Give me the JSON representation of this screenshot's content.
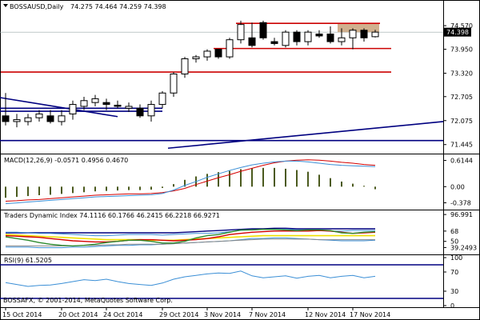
{
  "window": {
    "title": "BOSSAUSD,Daily",
    "ohlc_text": "74.275 74.464 74.259 74.398",
    "current_price": "74.398",
    "copyright": "BOSSAFX, © 2001-2014, MetaQuotes Software Corp."
  },
  "colors": {
    "bull": "#ffffff",
    "bear": "#000000",
    "candle_outline": "#000000",
    "resistance": "#cc0000",
    "trend": "#000080",
    "price_box": "#c8a27a",
    "macd_signal": "#d40000",
    "macd_main": "#3b8fd6",
    "macd_hist": "#4b5a1e",
    "tdi_green": "#2e8b2e",
    "tdi_red": "#d40000",
    "tdi_yellow": "#f0e000",
    "tdi_navy": "#000080",
    "tdi_gray": "#888888",
    "rsi_line": "#3b8fd6"
  },
  "macd": {
    "label": "MACD(12,26,9) -0.0571 0.4956 0.4670"
  },
  "tdi": {
    "label": "Traders Dynamic Index 74.1116 60.1766 46.2415 66.2218 66.9271"
  },
  "rsi": {
    "label": "RSI(9) 61.5205"
  },
  "chart_data": {
    "type": "candlestick",
    "title": "BOSSAUSD,Daily",
    "price_axis": {
      "ticks": [
        74.57,
        73.95,
        73.32,
        72.705,
        72.075,
        71.445
      ],
      "labels": [
        "74.570",
        "73.950",
        "73.320",
        "72.705",
        "72.075",
        "71.445"
      ]
    },
    "price_range": [
      71.25,
      74.95
    ],
    "date_labels": [
      "15 Oct 2014",
      "20 Oct 2014",
      "24 Oct 2014",
      "29 Oct 2014",
      "3 Nov 2014",
      "7 Nov 2014",
      "12 Nov 2014",
      "17 Nov 2014"
    ],
    "date_label_candle_index": [
      0,
      5,
      9,
      14,
      18,
      22,
      27,
      31
    ],
    "candles": [
      {
        "o": 72.2,
        "h": 72.8,
        "l": 71.95,
        "c": 72.05
      },
      {
        "o": 72.05,
        "h": 72.25,
        "l": 71.9,
        "c": 72.1
      },
      {
        "o": 72.05,
        "h": 72.25,
        "l": 71.95,
        "c": 72.15
      },
      {
        "o": 72.15,
        "h": 72.35,
        "l": 72.05,
        "c": 72.25
      },
      {
        "o": 72.2,
        "h": 72.35,
        "l": 72.0,
        "c": 72.05
      },
      {
        "o": 72.05,
        "h": 72.35,
        "l": 71.95,
        "c": 72.2
      },
      {
        "o": 72.25,
        "h": 72.6,
        "l": 72.1,
        "c": 72.5
      },
      {
        "o": 72.45,
        "h": 72.7,
        "l": 72.35,
        "c": 72.6
      },
      {
        "o": 72.55,
        "h": 72.75,
        "l": 72.45,
        "c": 72.65
      },
      {
        "o": 72.55,
        "h": 72.65,
        "l": 72.35,
        "c": 72.5
      },
      {
        "o": 72.48,
        "h": 72.6,
        "l": 72.4,
        "c": 72.45
      },
      {
        "o": 72.4,
        "h": 72.55,
        "l": 72.3,
        "c": 72.45
      },
      {
        "o": 72.4,
        "h": 72.5,
        "l": 72.15,
        "c": 72.2
      },
      {
        "o": 72.2,
        "h": 72.6,
        "l": 72.05,
        "c": 72.5
      },
      {
        "o": 72.5,
        "h": 72.85,
        "l": 72.4,
        "c": 72.8
      },
      {
        "o": 72.8,
        "h": 73.35,
        "l": 72.7,
        "c": 73.3
      },
      {
        "o": 73.3,
        "h": 73.75,
        "l": 73.2,
        "c": 73.7
      },
      {
        "o": 73.7,
        "h": 73.8,
        "l": 73.6,
        "c": 73.75
      },
      {
        "o": 73.75,
        "h": 73.95,
        "l": 73.65,
        "c": 73.9
      },
      {
        "o": 73.95,
        "h": 73.95,
        "l": 73.7,
        "c": 73.75
      },
      {
        "o": 73.75,
        "h": 74.25,
        "l": 73.7,
        "c": 74.2
      },
      {
        "o": 74.2,
        "h": 74.7,
        "l": 74.1,
        "c": 74.6
      },
      {
        "o": 74.25,
        "h": 74.65,
        "l": 74.0,
        "c": 74.05
      },
      {
        "o": 74.65,
        "h": 74.7,
        "l": 74.2,
        "c": 74.25
      },
      {
        "o": 74.15,
        "h": 74.25,
        "l": 74.05,
        "c": 74.1
      },
      {
        "o": 74.05,
        "h": 74.45,
        "l": 74.0,
        "c": 74.4
      },
      {
        "o": 74.4,
        "h": 74.45,
        "l": 74.05,
        "c": 74.15
      },
      {
        "o": 74.15,
        "h": 74.45,
        "l": 74.05,
        "c": 74.4
      },
      {
        "o": 74.35,
        "h": 74.45,
        "l": 74.25,
        "c": 74.3
      },
      {
        "o": 74.35,
        "h": 74.55,
        "l": 74.1,
        "c": 74.15
      },
      {
        "o": 74.15,
        "h": 74.5,
        "l": 74.05,
        "c": 74.25
      },
      {
        "o": 74.25,
        "h": 74.5,
        "l": 73.95,
        "c": 74.45
      },
      {
        "o": 74.45,
        "h": 74.5,
        "l": 74.15,
        "c": 74.25
      },
      {
        "o": 74.28,
        "h": 74.46,
        "l": 74.26,
        "c": 74.4
      }
    ],
    "resistance_levels": [
      {
        "price": 74.63,
        "from_index": 21,
        "to_index": 33
      },
      {
        "price": 73.97,
        "from_index": 19,
        "to_index": 34
      },
      {
        "price": 73.35,
        "from_index": 0,
        "to_index": 34
      }
    ],
    "price_box": {
      "top": 74.63,
      "bottom": 74.4,
      "from_index": 30,
      "to_index": 33
    },
    "trend_lines": [
      {
        "from": {
          "i": 0,
          "p": 72.68
        },
        "to": {
          "i": 10,
          "p": 72.18
        }
      },
      {
        "from": {
          "i": 0,
          "p": 72.4
        },
        "to": {
          "i": 14,
          "p": 72.4
        }
      },
      {
        "from": {
          "i": 0,
          "p": 72.32
        },
        "to": {
          "i": 14,
          "p": 72.32
        }
      },
      {
        "from": {
          "i": 0,
          "p": 71.55
        },
        "to": {
          "i": 40,
          "p": 71.55
        }
      },
      {
        "from": {
          "i": 15,
          "p": 71.35
        },
        "to": {
          "i": 40,
          "p": 72.05
        }
      }
    ],
    "macd": {
      "axis_ticks": [
        0.6144,
        0.0,
        -0.378
      ],
      "axis_labels": [
        "0.6144",
        "0.00",
        "-0.378"
      ],
      "range": [
        -0.5,
        0.7
      ],
      "histogram": [
        -0.26,
        -0.24,
        -0.22,
        -0.2,
        -0.19,
        -0.17,
        -0.15,
        -0.13,
        -0.11,
        -0.1,
        -0.09,
        -0.08,
        -0.08,
        -0.07,
        -0.03,
        0.06,
        0.16,
        0.24,
        0.3,
        0.34,
        0.37,
        0.41,
        0.43,
        0.44,
        0.44,
        0.42,
        0.39,
        0.35,
        0.28,
        0.2,
        0.12,
        0.07,
        0.02,
        -0.06
      ],
      "signal": [
        -0.34,
        -0.33,
        -0.31,
        -0.3,
        -0.28,
        -0.26,
        -0.24,
        -0.22,
        -0.2,
        -0.19,
        -0.18,
        -0.17,
        -0.17,
        -0.16,
        -0.14,
        -0.1,
        -0.04,
        0.05,
        0.13,
        0.21,
        0.28,
        0.36,
        0.43,
        0.5,
        0.56,
        0.6,
        0.62,
        0.63,
        0.62,
        0.6,
        0.57,
        0.55,
        0.52,
        0.5
      ],
      "main": [
        -0.4,
        -0.38,
        -0.36,
        -0.34,
        -0.32,
        -0.3,
        -0.28,
        -0.26,
        -0.24,
        -0.23,
        -0.22,
        -0.21,
        -0.2,
        -0.19,
        -0.16,
        -0.08,
        0.03,
        0.12,
        0.22,
        0.3,
        0.38,
        0.45,
        0.51,
        0.55,
        0.58,
        0.6,
        0.6,
        0.58,
        0.55,
        0.52,
        0.5,
        0.49,
        0.48,
        0.47
      ]
    },
    "tdi": {
      "axis_ticks": [
        96.991,
        68,
        50,
        39.2493
      ],
      "axis_labels": [
        "96.991",
        "68",
        "50",
        "39.2493"
      ],
      "range": [
        30,
        100
      ],
      "upper_band": [
        66,
        66,
        65,
        64,
        64,
        63,
        62,
        61,
        60,
        60,
        61,
        62,
        62,
        62,
        61,
        62,
        63,
        64,
        64,
        65,
        67,
        69,
        70,
        71,
        71,
        71,
        70,
        70,
        69,
        68,
        68,
        69,
        69,
        69
      ],
      "lower_band": [
        40,
        40,
        40,
        39,
        39,
        39,
        40,
        40,
        41,
        42,
        43,
        43,
        44,
        44,
        45,
        46,
        47,
        48,
        49,
        50,
        51,
        53,
        55,
        55,
        56,
        56,
        55,
        54,
        53,
        52,
        51,
        51,
        51,
        52
      ],
      "green_line": [
        58,
        55,
        52,
        48,
        45,
        43,
        42,
        43,
        45,
        48,
        50,
        52,
        52,
        50,
        47,
        47,
        50,
        56,
        60,
        62,
        66,
        70,
        70,
        71,
        71,
        70,
        69,
        70,
        70,
        69,
        65,
        64,
        66,
        67
      ],
      "red_line": [
        60,
        59,
        58,
        57,
        55,
        53,
        51,
        50,
        49,
        49,
        50,
        52,
        53,
        53,
        52,
        51,
        52,
        53,
        55,
        58,
        62,
        64,
        66,
        67,
        68,
        68,
        68,
        68,
        69,
        68,
        66,
        64,
        65,
        66
      ],
      "yellow_line": [
        62,
        61,
        60,
        59,
        58,
        57,
        56,
        55,
        54,
        53,
        53,
        53,
        53,
        52,
        52,
        52,
        53,
        54,
        55,
        56,
        57,
        58,
        59,
        60,
        60,
        60,
        60,
        60,
        60,
        60,
        60,
        60,
        60,
        60
      ],
      "navy_line": [
        65,
        65,
        65,
        65,
        65,
        65,
        65,
        65,
        65,
        65,
        65,
        65,
        65,
        65,
        65,
        65,
        66,
        67,
        68,
        69,
        70,
        71,
        72,
        72,
        73,
        73,
        72,
        72,
        72,
        72,
        72,
        72,
        72,
        72
      ],
      "gray_line": [
        42,
        42,
        42,
        42,
        42,
        42,
        42,
        43,
        43,
        44,
        44,
        45,
        45,
        45,
        45,
        46,
        47,
        48,
        49,
        50,
        51,
        52,
        53,
        54,
        54,
        54,
        54,
        54,
        53,
        53,
        53,
        53,
        53,
        53
      ]
    },
    "rsi": {
      "axis_ticks": [
        100,
        70,
        30,
        0
      ],
      "axis_labels": [
        "100",
        "70",
        "30",
        "0"
      ],
      "range": [
        0,
        100
      ],
      "levels": [
        85,
        15
      ],
      "values": [
        48,
        44,
        40,
        42,
        43,
        46,
        50,
        54,
        52,
        55,
        50,
        46,
        44,
        42,
        47,
        55,
        60,
        63,
        66,
        68,
        67,
        72,
        62,
        58,
        60,
        62,
        57,
        61,
        63,
        58,
        61,
        63,
        58,
        61
      ]
    }
  }
}
